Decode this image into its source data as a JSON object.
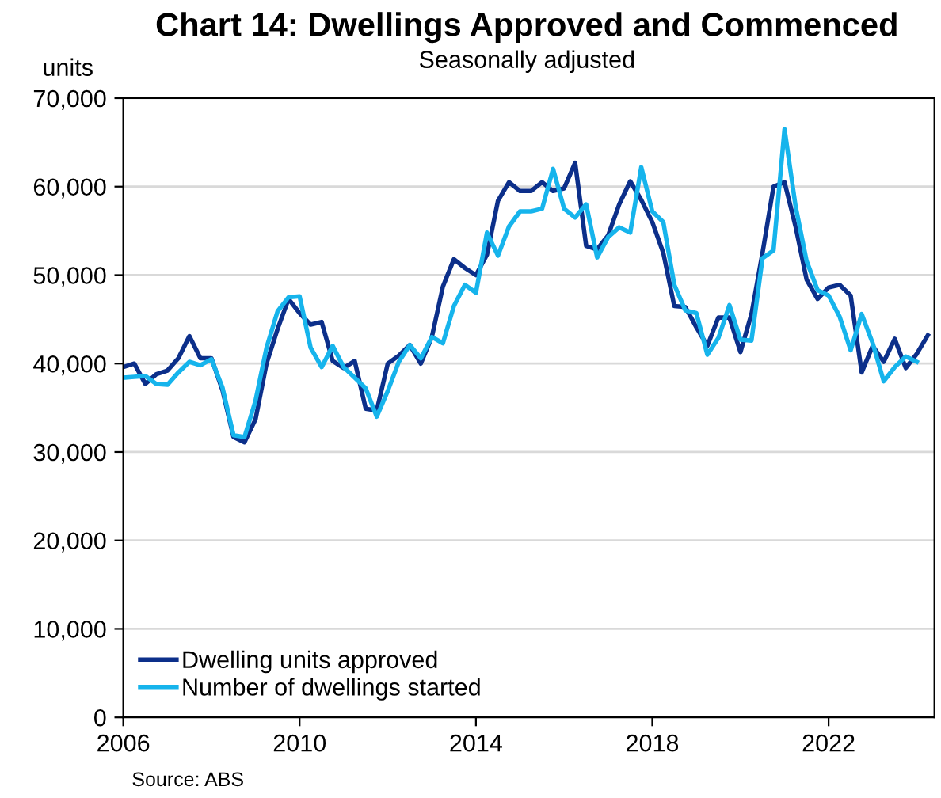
{
  "chart_data": {
    "type": "line",
    "title": "Chart 14: Dwellings Approved and Commenced",
    "subtitle": "Seasonally adjusted",
    "ylabel": "units",
    "annotations": [
      "Source: ABS"
    ],
    "xlim": [
      2006,
      2024.4
    ],
    "xticks": [
      2006,
      2010,
      2014,
      2018,
      2022
    ],
    "ylim": [
      0,
      70000
    ],
    "yticks": [
      {
        "value": 0,
        "label": "0"
      },
      {
        "value": 10000,
        "label": "10,000"
      },
      {
        "value": 20000,
        "label": "20,000"
      },
      {
        "value": 30000,
        "label": "30,000"
      },
      {
        "value": 40000,
        "label": "40,000"
      },
      {
        "value": 50000,
        "label": "50,000"
      },
      {
        "value": 60000,
        "label": "60,000"
      },
      {
        "value": 70000,
        "label": "70,000"
      }
    ],
    "grid": "y",
    "legend": "bottom left",
    "line_style": "solid",
    "marker": "none",
    "series": [
      {
        "name": "Dwelling units approved",
        "color": "#0c2f8a",
        "x": [
          2006,
          2006.25,
          2006.5,
          2006.75,
          2007,
          2007.25,
          2007.5,
          2007.75,
          2008,
          2008.25,
          2008.5,
          2008.75,
          2009,
          2009.25,
          2009.5,
          2009.75,
          2010,
          2010.25,
          2010.5,
          2010.75,
          2011,
          2011.25,
          2011.5,
          2011.75,
          2012,
          2012.25,
          2012.5,
          2012.75,
          2013,
          2013.25,
          2013.5,
          2013.75,
          2014,
          2014.25,
          2014.5,
          2014.75,
          2015,
          2015.25,
          2015.5,
          2015.75,
          2016,
          2016.25,
          2016.5,
          2016.75,
          2017,
          2017.25,
          2017.5,
          2017.75,
          2018,
          2018.25,
          2018.5,
          2018.75,
          2019,
          2019.25,
          2019.5,
          2019.75,
          2020,
          2020.25,
          2020.5,
          2020.75,
          2021,
          2021.25,
          2021.5,
          2021.75,
          2022,
          2022.25,
          2022.5,
          2022.75,
          2023,
          2023.25,
          2023.5,
          2023.75,
          2024,
          2024.25
        ],
        "values": [
          39600,
          40000,
          37700,
          38800,
          39200,
          40600,
          43100,
          40600,
          40600,
          37000,
          31700,
          31100,
          33700,
          40000,
          43900,
          47300,
          45700,
          44400,
          44700,
          40300,
          39500,
          40300,
          34900,
          34700,
          40000,
          40900,
          42100,
          40000,
          43000,
          48700,
          51800,
          50800,
          50000,
          52300,
          58400,
          60500,
          59500,
          59500,
          60500,
          59500,
          59800,
          62700,
          53300,
          52900,
          54500,
          58000,
          60600,
          58500,
          56000,
          52500,
          46500,
          46400,
          44100,
          42000,
          45200,
          45200,
          41300,
          45600,
          52500,
          60000,
          60500,
          55500,
          49500,
          47300,
          48600,
          48900,
          47700,
          39000,
          42000,
          40200,
          42800,
          39500,
          41100,
          43200
        ]
      },
      {
        "name": "Number of dwellings started",
        "color": "#16b4ec",
        "x": [
          2006,
          2006.25,
          2006.5,
          2006.75,
          2007,
          2007.25,
          2007.5,
          2007.75,
          2008,
          2008.25,
          2008.5,
          2008.75,
          2009,
          2009.25,
          2009.5,
          2009.75,
          2010,
          2010.25,
          2010.5,
          2010.75,
          2011,
          2011.25,
          2011.5,
          2011.75,
          2012,
          2012.25,
          2012.5,
          2012.75,
          2013,
          2013.25,
          2013.5,
          2013.75,
          2014,
          2014.25,
          2014.5,
          2014.75,
          2015,
          2015.25,
          2015.5,
          2015.75,
          2016,
          2016.25,
          2016.5,
          2016.75,
          2017,
          2017.25,
          2017.5,
          2017.75,
          2018,
          2018.25,
          2018.5,
          2018.75,
          2019,
          2019.25,
          2019.5,
          2019.75,
          2020,
          2020.25,
          2020.5,
          2020.75,
          2021,
          2021.25,
          2021.5,
          2021.75,
          2022,
          2022.25,
          2022.5,
          2022.75,
          2023,
          2023.25,
          2023.5,
          2023.75,
          2024
        ],
        "values": [
          38400,
          38500,
          38600,
          37700,
          37600,
          39000,
          40200,
          39800,
          40500,
          37300,
          31900,
          31700,
          35800,
          41800,
          45900,
          47500,
          47600,
          41800,
          39600,
          42000,
          39600,
          38400,
          37200,
          34000,
          36900,
          40200,
          42100,
          40600,
          43000,
          42300,
          46500,
          48900,
          48000,
          54800,
          52200,
          55500,
          57200,
          57200,
          57500,
          62000,
          57500,
          56500,
          58000,
          52000,
          54300,
          55400,
          54800,
          62200,
          57200,
          56000,
          48900,
          46000,
          45700,
          41000,
          42900,
          46600,
          42700,
          42600,
          51900,
          52800,
          66500,
          57800,
          51600,
          48300,
          47700,
          45300,
          41500,
          45600,
          42300,
          38000,
          39600,
          40800,
          40200
        ]
      }
    ]
  }
}
